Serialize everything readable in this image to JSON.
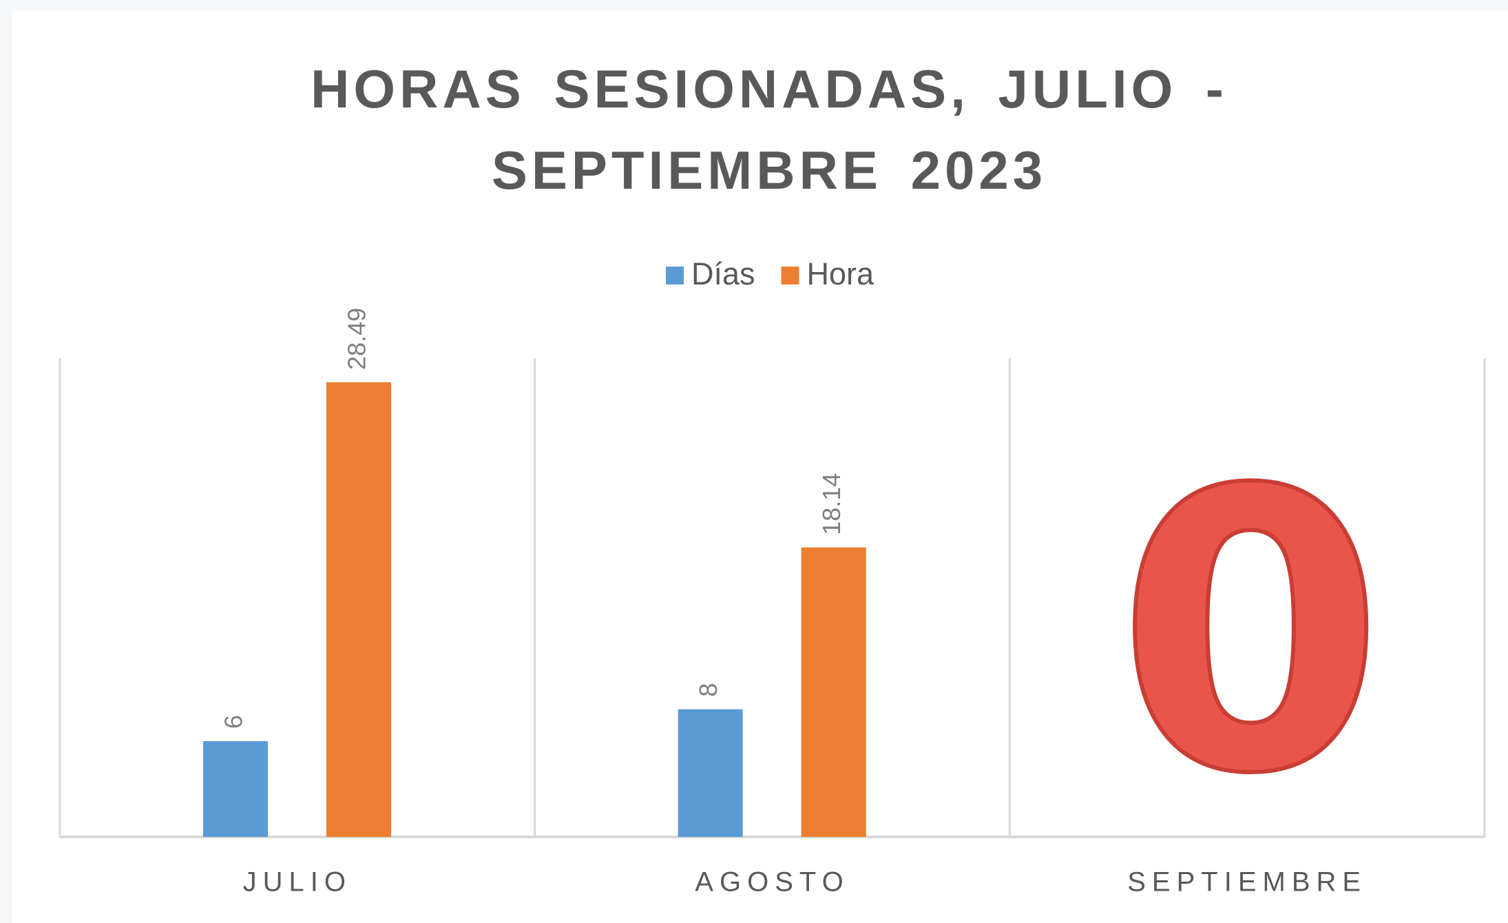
{
  "chart_data": {
    "type": "bar",
    "title": "HORAS SESIONADAS, JULIO - SEPTIEMBRE 2023",
    "categories": [
      "JULIO",
      "AGOSTO",
      "SEPTIEMBRE"
    ],
    "series": [
      {
        "name": "Días",
        "color": "#5b9bd5",
        "values": [
          6,
          8,
          null
        ]
      },
      {
        "name": "Hora",
        "color": "#ed7d31",
        "values": [
          28.49,
          18.14,
          null
        ]
      }
    ],
    "ylim": [
      0,
      30
    ],
    "grid": true,
    "legend": "top",
    "annotation": "0"
  }
}
